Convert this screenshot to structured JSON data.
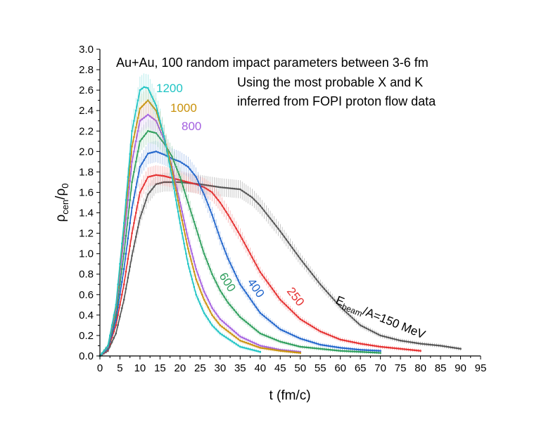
{
  "chart_data": {
    "type": "line",
    "xlabel": "t (fm/c)",
    "ylabel_parts": {
      "base": "ρ",
      "sub1": "cen",
      "slash": "/ρ",
      "sub2": "0"
    },
    "xlim": [
      0,
      95
    ],
    "ylim": [
      0,
      3.0
    ],
    "x_ticks": [
      "0",
      "5",
      "10",
      "15",
      "20",
      "25",
      "30",
      "35",
      "40",
      "45",
      "50",
      "55",
      "60",
      "65",
      "70",
      "75",
      "80",
      "85",
      "90",
      "95"
    ],
    "y_ticks": [
      "0.0",
      "0.2",
      "0.4",
      "0.6",
      "0.8",
      "1.0",
      "1.2",
      "1.4",
      "1.6",
      "1.8",
      "2.0",
      "2.2",
      "2.4",
      "2.6",
      "2.8",
      "3.0"
    ],
    "grid": false,
    "annotations": [
      "Au+Au, 100 random impact parameters between 3-6 fm",
      "Using the most probable X and K",
      "inferred from FOPI proton flow data"
    ],
    "series_label_prefix": {
      "main": "E",
      "sub": "beam",
      "rest": "/A=150 MeV"
    },
    "series": [
      {
        "name": "1200",
        "color": "#1fc4c4",
        "x": [
          0,
          2,
          4,
          6,
          8,
          10,
          11,
          12,
          14,
          16,
          18,
          20,
          22,
          24,
          26,
          28,
          30,
          35,
          40
        ],
        "y": [
          0,
          0.1,
          0.5,
          1.3,
          2.2,
          2.6,
          2.63,
          2.62,
          2.45,
          2.15,
          1.75,
          1.3,
          0.9,
          0.6,
          0.42,
          0.3,
          0.22,
          0.09,
          0.04
        ]
      },
      {
        "name": "1000",
        "color": "#c9920c",
        "x": [
          0,
          2,
          4,
          6,
          8,
          10,
          12,
          14,
          16,
          18,
          20,
          22,
          24,
          26,
          28,
          30,
          35,
          40,
          45,
          50
        ],
        "y": [
          0,
          0.1,
          0.48,
          1.25,
          2.05,
          2.42,
          2.5,
          2.4,
          2.15,
          1.82,
          1.42,
          1.05,
          0.75,
          0.55,
          0.4,
          0.3,
          0.15,
          0.08,
          0.05,
          0.03
        ]
      },
      {
        "name": "800",
        "color": "#a460e0",
        "x": [
          0,
          2,
          4,
          6,
          8,
          10,
          12,
          14,
          16,
          18,
          20,
          22,
          24,
          26,
          28,
          30,
          35,
          40,
          45,
          50
        ],
        "y": [
          0,
          0.09,
          0.45,
          1.15,
          1.9,
          2.3,
          2.36,
          2.3,
          2.12,
          1.85,
          1.5,
          1.15,
          0.85,
          0.63,
          0.47,
          0.36,
          0.19,
          0.1,
          0.06,
          0.04
        ]
      },
      {
        "name": "600",
        "color": "#2e9e5c",
        "x": [
          0,
          2,
          4,
          6,
          8,
          10,
          12,
          14,
          16,
          18,
          20,
          22,
          24,
          26,
          28,
          30,
          32,
          35,
          40,
          45,
          50,
          55,
          60,
          70
        ],
        "y": [
          0,
          0.08,
          0.4,
          1.0,
          1.7,
          2.1,
          2.2,
          2.18,
          2.08,
          1.95,
          1.75,
          1.5,
          1.25,
          1.0,
          0.8,
          0.64,
          0.52,
          0.38,
          0.22,
          0.14,
          0.09,
          0.07,
          0.05,
          0.03
        ]
      },
      {
        "name": "400",
        "color": "#2266cc",
        "x": [
          0,
          2,
          4,
          6,
          8,
          10,
          12,
          14,
          16,
          18,
          20,
          22,
          24,
          26,
          28,
          30,
          32,
          35,
          40,
          45,
          50,
          55,
          60,
          65,
          70
        ],
        "y": [
          0,
          0.07,
          0.35,
          0.85,
          1.45,
          1.85,
          1.98,
          2.0,
          1.97,
          1.93,
          1.9,
          1.85,
          1.75,
          1.58,
          1.38,
          1.15,
          0.95,
          0.7,
          0.42,
          0.26,
          0.17,
          0.11,
          0.08,
          0.06,
          0.05
        ]
      },
      {
        "name": "250",
        "color": "#e53030",
        "x": [
          0,
          2,
          4,
          6,
          8,
          10,
          12,
          14,
          16,
          18,
          20,
          22,
          24,
          26,
          28,
          30,
          32,
          35,
          40,
          45,
          50,
          55,
          60,
          65,
          70,
          75,
          80
        ],
        "y": [
          0,
          0.06,
          0.3,
          0.7,
          1.2,
          1.6,
          1.75,
          1.77,
          1.76,
          1.74,
          1.72,
          1.7,
          1.68,
          1.65,
          1.6,
          1.5,
          1.38,
          1.18,
          0.82,
          0.55,
          0.36,
          0.24,
          0.16,
          0.12,
          0.09,
          0.07,
          0.05
        ]
      },
      {
        "name": "",
        "color": "#555555",
        "x": [
          0,
          2,
          4,
          6,
          8,
          10,
          12,
          14,
          16,
          18,
          20,
          25,
          30,
          35,
          38,
          40,
          45,
          50,
          55,
          60,
          65,
          70,
          75,
          80,
          85,
          90
        ],
        "y": [
          0,
          0.05,
          0.22,
          0.55,
          0.98,
          1.35,
          1.58,
          1.68,
          1.7,
          1.7,
          1.7,
          1.68,
          1.65,
          1.63,
          1.55,
          1.47,
          1.22,
          0.95,
          0.7,
          0.48,
          0.3,
          0.2,
          0.15,
          0.12,
          0.1,
          0.07
        ]
      }
    ]
  }
}
